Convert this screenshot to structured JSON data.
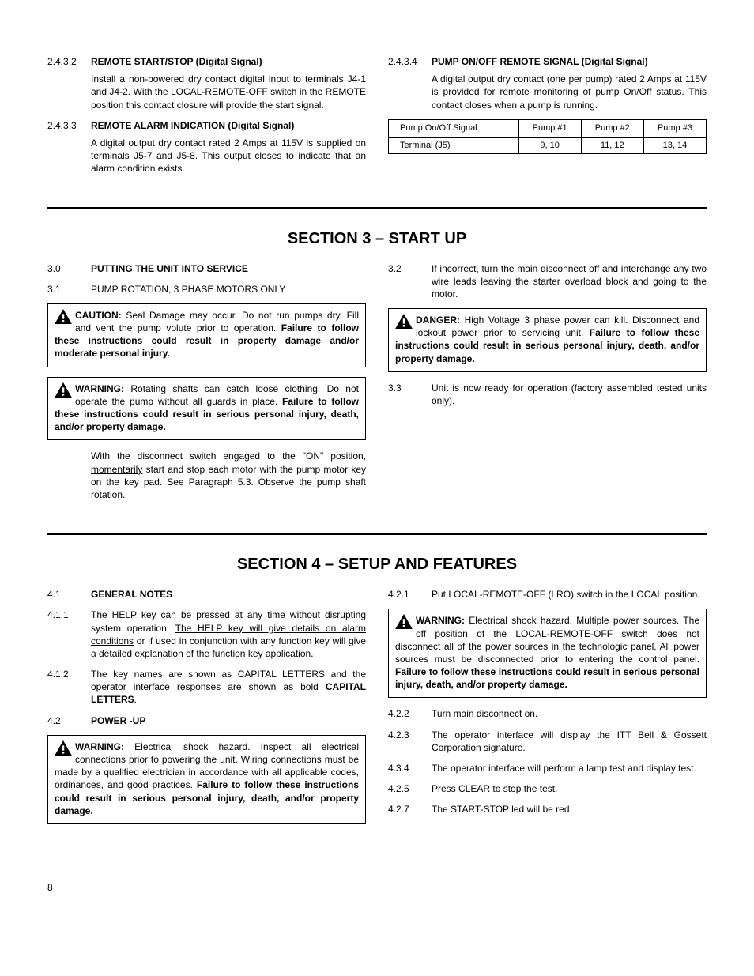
{
  "top": {
    "left": [
      {
        "num": "2.4.3.2",
        "heading": "REMOTE START/STOP (Digital Signal)",
        "text": "Install a non-powered dry contact digital input to terminals J4-1 and J4-2. With the LOCAL-REMOTE-OFF switch in the REMOTE position this contact closure will provide the start signal."
      },
      {
        "num": "2.4.3.3",
        "heading": "REMOTE ALARM INDICATION (Digital Signal)",
        "text": "A digital output dry contact rated 2 Amps at 115V is supplied on terminals J5-7 and J5-8. This output closes to indicate that an alarm condition exists."
      }
    ],
    "right": {
      "num": "2.4.3.4",
      "heading": "PUMP ON/OFF REMOTE SIGNAL (Digital Signal)",
      "text": "A digital output dry contact (one per pump) rated 2 Amps at 115V is provided for remote monitoring of pump On/Off status. This contact closes when a pump is running.",
      "table": {
        "headers": [
          "Pump On/Off Signal",
          "Pump #1",
          "Pump #2",
          "Pump #3"
        ],
        "row_label": "Terminal (J5)",
        "row_vals": [
          "9, 10",
          "11, 12",
          "13, 14"
        ]
      }
    }
  },
  "section3": {
    "title": "SECTION 3 – START UP",
    "left": {
      "e30": {
        "num": "3.0",
        "heading": "PUTTING THE UNIT INTO SERVICE"
      },
      "e31": {
        "num": "3.1",
        "text": "PUMP ROTATION, 3 PHASE MOTORS ONLY"
      },
      "caution": {
        "label": "CAUTION:",
        "t1": " Seal Damage may occur. Do not run pumps dry. Fill and vent the pump volute prior to operation. ",
        "t2": "Failure to follow these instructions could result in property damage and/or moderate personal injury."
      },
      "warn": {
        "label": "WARNING:",
        "t1": " Rotating shafts can catch loose clothing. Do not operate the pump without all guards in place. ",
        "t2": "Failure to follow these instructions could result in serious personal injury, death, and/or property damage."
      },
      "para": "With the disconnect switch engaged to the \"ON\" position, momentarily start and stop each motor with the pump motor key on the key pad.  See Paragraph 5.3.  Observe the pump shaft rotation.",
      "para_pre": "With the disconnect switch engaged to the \"ON\" position, ",
      "para_u": "momentarily",
      "para_post": " start and stop each motor with the pump motor key on the key pad.  See Paragraph 5.3.  Observe the pump shaft rotation."
    },
    "right": {
      "e32": {
        "num": "3.2",
        "text": "If incorrect, turn the main disconnect off and interchange any two wire leads leaving the starter overload block and going to the motor."
      },
      "danger": {
        "label": "DANGER:",
        "t1": " High Voltage 3 phase power can kill. Disconnect and lockout power prior to servicing unit. ",
        "t2": "Failure to follow these instructions could result in serious personal injury, death, and/or property damage."
      },
      "e33": {
        "num": "3.3",
        "text": "Unit is now ready for operation (factory assembled tested units only)."
      }
    }
  },
  "section4": {
    "title": "SECTION 4 – SETUP AND FEATURES",
    "left": {
      "e41": {
        "num": "4.1",
        "heading": "GENERAL NOTES"
      },
      "e411": {
        "num": "4.1.1",
        "pre": "The HELP key can be pressed at any time without disrupting system operation. ",
        "u": "The HELP key will give details on alarm conditions",
        "post": " or if used in conjunction with any function key will give a detailed explanation of the function key application."
      },
      "e412": {
        "num": "4.1.2",
        "pre": "The key names are shown as CAPITAL LETTERS and the operator interface responses are shown as bold ",
        "bold": "CAPITAL LETTERS",
        "post": "."
      },
      "e42": {
        "num": "4.2",
        "heading": "POWER -UP"
      },
      "warn": {
        "label": "WARNING:",
        "t1": " Electrical shock hazard. Inspect all electrical connections prior to powering the unit. Wiring connections must be made by a qualified electrician in accordance with all applicable codes, ordinances, and good practices. ",
        "t2": "Failure to follow these instructions could result in serious personal injury, death, and/or property damage."
      }
    },
    "right": {
      "e421": {
        "num": "4.2.1",
        "text": "Put LOCAL-REMOTE-OFF (LRO) switch in the LOCAL position."
      },
      "warn": {
        "label": "WARNING:",
        "t1": " Electrical shock hazard. Multiple power sources. The off position of the LOCAL-REMOTE-OFF switch does not disconnect all of the power sources in the technologic panel, All power sources must be disconnected prior to entering the control panel. ",
        "t2": "Failure to follow these instructions could result in serious personal injury, death, and/or property damage."
      },
      "items": [
        {
          "num": "4.2.2",
          "text": "Turn main disconnect on."
        },
        {
          "num": "4.2.3",
          "text": "The operator interface will display the ITT Bell & Gossett Corporation signature."
        },
        {
          "num": "4.3.4",
          "text": "The operator interface will perform a lamp test and display test."
        },
        {
          "num": "4.2.5",
          "text": "Press CLEAR to stop the test."
        },
        {
          "num": "4.2.7",
          "text": "The START-STOP led will be red."
        }
      ]
    }
  },
  "page_num": "8",
  "icon_fill": "#000000"
}
